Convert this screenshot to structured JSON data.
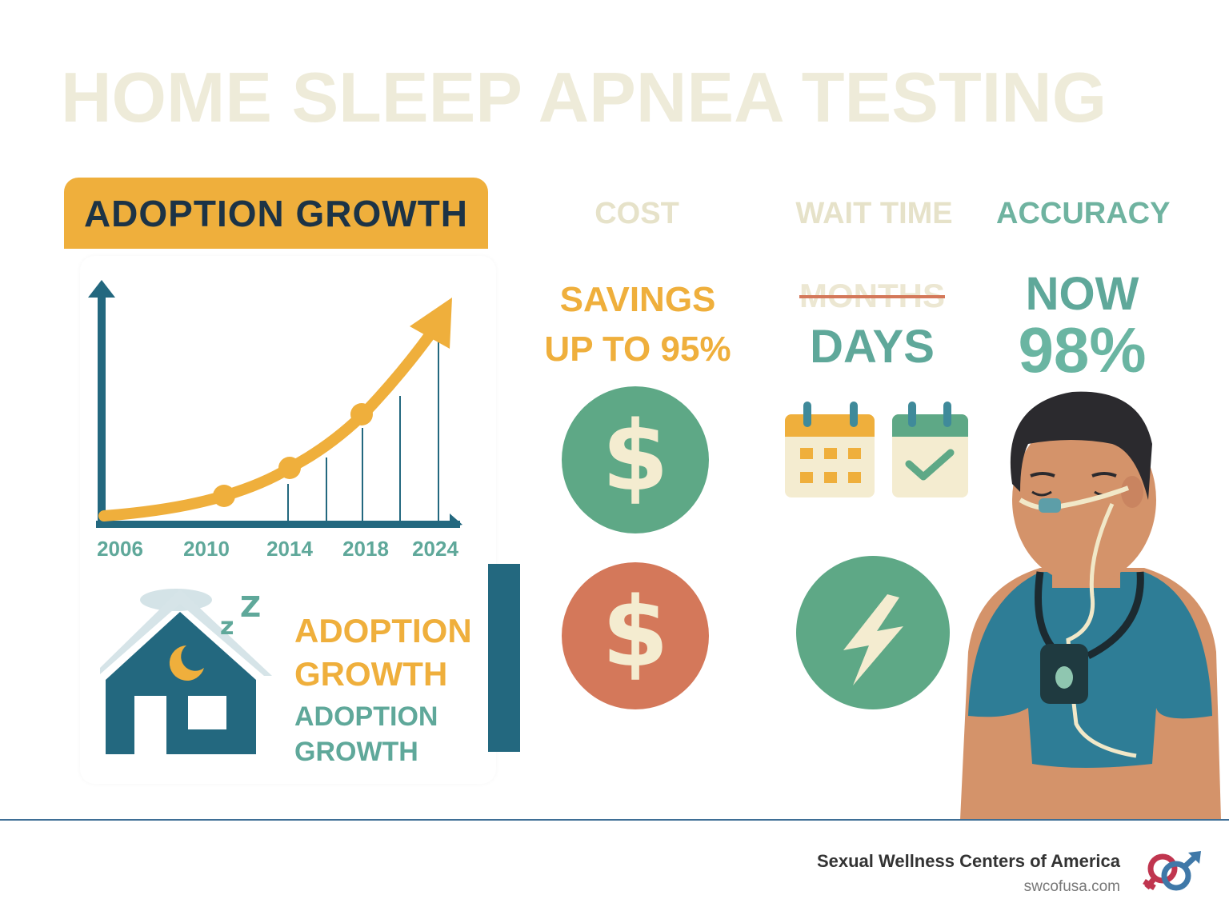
{
  "title": "HOME SLEEP APNEA TESTING",
  "adoption": {
    "banner": "ADOPTION GROWTH",
    "chart_data": {
      "type": "line",
      "categories": [
        "2006",
        "2010",
        "2014",
        "2018",
        "2024"
      ],
      "trend": "rising (exponential-like growth arrow)"
    },
    "label_primary_1": "ADOPTION",
    "label_primary_2": "GROWTH",
    "label_secondary_1": "ADOPTION",
    "label_secondary_2": "GROWTH"
  },
  "columns": {
    "cost": {
      "header": "COST",
      "line1": "SAVINGS",
      "line2": "UP TO 95%"
    },
    "wait": {
      "header": "WAIT TIME",
      "old": "MONTHS",
      "new": "DAYS"
    },
    "accuracy": {
      "header": "ACCURACY",
      "line1": "NOW",
      "line2": "98%"
    }
  },
  "footer": {
    "org": "Sexual Wellness Centers of America",
    "url": "swcofusa.com"
  },
  "colors": {
    "orange": "#efaf3c",
    "teal": "#5fa89a",
    "navy": "#23687f",
    "green": "#5ea886",
    "coral": "#d4785a",
    "cream": "#f4ecd0",
    "title": "#eeebd9"
  }
}
